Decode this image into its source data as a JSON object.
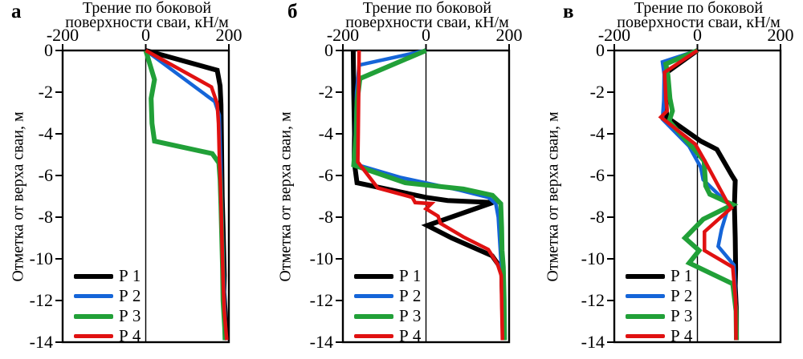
{
  "figure": {
    "title_line1": "Трение по боковой",
    "title_line2": "поверхности сваи, кН/м",
    "ylabel": "Отметка от верха сваи, м"
  },
  "chart_data": [
    {
      "panel": "а",
      "type": "line",
      "title_line1": "Трение по боковой",
      "title_line2": "поверхности сваи, кН/м",
      "xlabel": "Трение по боковой поверхности сваи, кН/м",
      "ylabel": "Отметка от верха сваи, м",
      "xlim": [
        -200,
        200
      ],
      "ylim": [
        0,
        -14
      ],
      "x_ticks": [
        -200,
        0,
        200
      ],
      "y_ticks": [
        0,
        -2,
        -4,
        -6,
        -8,
        -10,
        -12,
        -14
      ],
      "grid": false,
      "legend_position": "lower-left",
      "series": [
        {
          "name": "Р 1",
          "color": "#000000",
          "width": 6,
          "points": [
            [
              0,
              0
            ],
            [
              172,
              -0.95
            ],
            [
              179,
              -1.7
            ],
            [
              181,
              -2.6
            ],
            [
              182,
              -4
            ],
            [
              183,
              -5.5
            ],
            [
              184,
              -7
            ],
            [
              186,
              -8.5
            ],
            [
              188,
              -10
            ],
            [
              189,
              -10.8
            ],
            [
              188,
              -11.6
            ],
            [
              192,
              -12.8
            ],
            [
              196,
              -13.9
            ]
          ]
        },
        {
          "name": "Р 2",
          "color": "#1565d8",
          "width": 4.5,
          "points": [
            [
              0,
              0
            ],
            [
              166,
              -2.45
            ],
            [
              177,
              -3.1
            ],
            [
              179,
              -4.5
            ],
            [
              181,
              -6
            ],
            [
              183,
              -7.5
            ],
            [
              185,
              -9
            ],
            [
              187,
              -10.5
            ],
            [
              189,
              -12
            ],
            [
              192,
              -13.4
            ],
            [
              194,
              -13.9
            ]
          ]
        },
        {
          "name": "Р 3",
          "color": "#21a038",
          "width": 6,
          "points": [
            [
              0,
              0
            ],
            [
              21,
              -1.4
            ],
            [
              13,
              -2.3
            ],
            [
              15,
              -3.5
            ],
            [
              21,
              -4.35
            ],
            [
              160,
              -4.95
            ],
            [
              176,
              -5.4
            ],
            [
              179,
              -6.2
            ],
            [
              181,
              -7.5
            ],
            [
              183,
              -9
            ],
            [
              185,
              -10.5
            ],
            [
              186,
              -12
            ],
            [
              190,
              -13.3
            ],
            [
              191,
              -13.9
            ]
          ]
        },
        {
          "name": "Р 4",
          "color": "#e01111",
          "width": 4.5,
          "points": [
            [
              0,
              0
            ],
            [
              158,
              -1.75
            ],
            [
              172,
              -2.55
            ],
            [
              175,
              -3.5
            ],
            [
              177,
              -5
            ],
            [
              180,
              -6.5
            ],
            [
              182,
              -8
            ],
            [
              184,
              -9.5
            ],
            [
              186,
              -11
            ],
            [
              189,
              -12.5
            ],
            [
              194,
              -13.7
            ],
            [
              195,
              -13.9
            ]
          ]
        }
      ]
    },
    {
      "panel": "б",
      "type": "line",
      "title_line1": "Трение по боковой",
      "title_line2": "поверхности сваи, кН/м",
      "xlabel": "Трение по боковой поверхности сваи, кН/м",
      "ylabel": "Отметка от верха сваи, м",
      "xlim": [
        -200,
        200
      ],
      "ylim": [
        0,
        -14
      ],
      "x_ticks": [
        -200,
        0,
        200
      ],
      "y_ticks": [
        0,
        -2,
        -4,
        -6,
        -8,
        -10,
        -12,
        -14
      ],
      "grid": false,
      "legend_position": "lower-left",
      "series": [
        {
          "name": "Р 1",
          "color": "#000000",
          "width": 6,
          "points": [
            [
              -175,
              0
            ],
            [
              -174,
              -2
            ],
            [
              -172,
              -4
            ],
            [
              -173,
              -5.3
            ],
            [
              -166,
              -6.35
            ],
            [
              0,
              -7.05
            ],
            [
              52,
              -7.2
            ],
            [
              161,
              -7.3
            ],
            [
              3,
              -8.4
            ],
            [
              62,
              -9.0
            ],
            [
              159,
              -9.85
            ],
            [
              182,
              -10.5
            ],
            [
              184,
              -12
            ],
            [
              186,
              -13.9
            ]
          ]
        },
        {
          "name": "Р 2",
          "color": "#1565d8",
          "width": 4.5,
          "points": [
            [
              0,
              0
            ],
            [
              -161,
              -0.7
            ],
            [
              -167,
              -2
            ],
            [
              -169,
              -3.5
            ],
            [
              -171,
              -5
            ],
            [
              -172,
              -5.45
            ],
            [
              -60,
              -6.1
            ],
            [
              80,
              -6.7
            ],
            [
              150,
              -7.05
            ],
            [
              168,
              -7.35
            ],
            [
              174,
              -8
            ],
            [
              177,
              -9
            ],
            [
              181,
              -10.3
            ],
            [
              183,
              -12
            ],
            [
              185,
              -13.9
            ]
          ]
        },
        {
          "name": "Р 3",
          "color": "#21a038",
          "width": 6,
          "points": [
            [
              0,
              0
            ],
            [
              -159,
              -1.35
            ],
            [
              -166,
              -2.5
            ],
            [
              -168,
              -4
            ],
            [
              -174,
              -5.5
            ],
            [
              -50,
              -6.35
            ],
            [
              90,
              -6.65
            ],
            [
              160,
              -6.95
            ],
            [
              180,
              -7.35
            ],
            [
              182,
              -8.5
            ],
            [
              183,
              -9.6
            ],
            [
              186,
              -10.4
            ],
            [
              188,
              -12
            ],
            [
              189,
              -13.9
            ]
          ]
        },
        {
          "name": "Р 4",
          "color": "#e01111",
          "width": 4.5,
          "points": [
            [
              -161,
              0
            ],
            [
              -162,
              -2
            ],
            [
              -163,
              -4
            ],
            [
              -164,
              -5.35
            ],
            [
              -116,
              -6.6
            ],
            [
              -33,
              -7.05
            ],
            [
              -26,
              -7.3
            ],
            [
              13,
              -7.35
            ],
            [
              0,
              -7.6
            ],
            [
              29,
              -7.95
            ],
            [
              35,
              -8.3
            ],
            [
              90,
              -8.95
            ],
            [
              150,
              -9.55
            ],
            [
              172,
              -10.25
            ],
            [
              181,
              -10.8
            ],
            [
              182,
              -12
            ],
            [
              184,
              -13.9
            ]
          ]
        }
      ]
    },
    {
      "panel": "в",
      "type": "line",
      "title_line1": "Трение по боковой",
      "title_line2": "поверхности сваи, кН/м",
      "xlabel": "Трение по боковой поверхности сваи, кН/м",
      "ylabel": "Отметка от верха сваи, м",
      "xlim": [
        -200,
        200
      ],
      "ylim": [
        0,
        -14
      ],
      "x_ticks": [
        -200,
        0,
        200
      ],
      "y_ticks": [
        0,
        -2,
        -4,
        -6,
        -8,
        -10,
        -12,
        -14
      ],
      "grid": false,
      "legend_position": "lower-left",
      "series": [
        {
          "name": "Р 1",
          "color": "#000000",
          "width": 6,
          "points": [
            [
              0,
              0
            ],
            [
              -77,
              -1.1
            ],
            [
              -76,
              -2.3
            ],
            [
              -74,
              -3.2
            ],
            [
              8,
              -4.35
            ],
            [
              47,
              -4.75
            ],
            [
              83,
              -6.0
            ],
            [
              91,
              -6.25
            ],
            [
              89,
              -7.45
            ],
            [
              91,
              -9
            ],
            [
              92,
              -10.5
            ],
            [
              91,
              -11.3
            ],
            [
              94,
              -12.5
            ],
            [
              94,
              -13.9
            ]
          ]
        },
        {
          "name": "Р 2",
          "color": "#1565d8",
          "width": 4.5,
          "points": [
            [
              0,
              0
            ],
            [
              -84,
              -0.55
            ],
            [
              -80,
              -1.15
            ],
            [
              -81,
              -2.4
            ],
            [
              -84,
              -3.3
            ],
            [
              -20,
              -4.6
            ],
            [
              8,
              -5.6
            ],
            [
              14,
              -6.2
            ],
            [
              76,
              -7.4
            ],
            [
              58,
              -8.6
            ],
            [
              50,
              -9.4
            ],
            [
              88,
              -10.3
            ],
            [
              92,
              -12
            ],
            [
              93,
              -13.9
            ]
          ]
        },
        {
          "name": "Р 3",
          "color": "#21a038",
          "width": 6,
          "points": [
            [
              0,
              0
            ],
            [
              -76,
              -0.65
            ],
            [
              -71,
              -1.2
            ],
            [
              -66,
              -2.3
            ],
            [
              -60,
              -2.9
            ],
            [
              -68,
              -3.4
            ],
            [
              -5,
              -4.8
            ],
            [
              16,
              -5.3
            ],
            [
              20,
              -6.5
            ],
            [
              30,
              -6.9
            ],
            [
              85,
              -7.4
            ],
            [
              14,
              -8.1
            ],
            [
              -30,
              -9.0
            ],
            [
              4,
              -9.6
            ],
            [
              -20,
              -10.2
            ],
            [
              85,
              -11.2
            ],
            [
              93,
              -12.5
            ],
            [
              94,
              -13.9
            ]
          ]
        },
        {
          "name": "Р 4",
          "color": "#e01111",
          "width": 4.5,
          "points": [
            [
              0,
              0
            ],
            [
              -79,
              -1.05
            ],
            [
              -76,
              -2.3
            ],
            [
              -73,
              -2.9
            ],
            [
              -88,
              -3.2
            ],
            [
              -5,
              -4.5
            ],
            [
              18,
              -5.3
            ],
            [
              45,
              -6.3
            ],
            [
              72,
              -7.3
            ],
            [
              82,
              -7.55
            ],
            [
              17,
              -8.7
            ],
            [
              17,
              -9.6
            ],
            [
              85,
              -10.4
            ],
            [
              92,
              -12
            ],
            [
              93,
              -13.9
            ]
          ]
        }
      ]
    }
  ]
}
